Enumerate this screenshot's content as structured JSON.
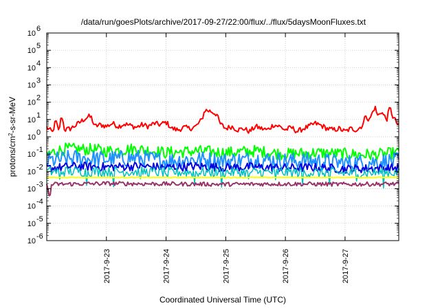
{
  "chart_data": {
    "type": "line",
    "title": "/data/run/goesPlots/archive/2017-09-27/22:00/flux/../flux/5daysMoonFluxes.txt",
    "xlabel": "Coordinated Universal Time (UTC)",
    "ylabel_parts": {
      "base": "protons/cm",
      "sup": "2",
      "rest": "-s-sr-MeV"
    },
    "y_scale": "log",
    "ylim": [
      1e-06,
      1000000.0
    ],
    "y_ticks": [
      {
        "value": 1000000.0,
        "base": "10",
        "exp": "6"
      },
      {
        "value": 100000.0,
        "base": "10",
        "exp": "5"
      },
      {
        "value": 10000.0,
        "base": "10",
        "exp": "4"
      },
      {
        "value": 1000.0,
        "base": "10",
        "exp": "3"
      },
      {
        "value": 100.0,
        "base": "10",
        "exp": "2"
      },
      {
        "value": 10.0,
        "base": "10",
        "exp": "1"
      },
      {
        "value": 1.0,
        "base": "10",
        "exp": "0"
      },
      {
        "value": 0.1,
        "base": "10",
        "exp": "-1"
      },
      {
        "value": 0.01,
        "base": "10",
        "exp": "-2"
      },
      {
        "value": 0.001,
        "base": "10",
        "exp": "-3"
      },
      {
        "value": 0.0001,
        "base": "10",
        "exp": "-4"
      },
      {
        "value": 1e-05,
        "base": "10",
        "exp": "-5"
      },
      {
        "value": 1e-06,
        "base": "10",
        "exp": "-6"
      }
    ],
    "x_range_days": [
      0,
      5.9
    ],
    "x_ticks": [
      {
        "day": 1,
        "label": "2017-9-23"
      },
      {
        "day": 2,
        "label": "2017-9-24"
      },
      {
        "day": 3,
        "label": "2017-9-25"
      },
      {
        "day": 4,
        "label": "2017-9-26"
      },
      {
        "day": 5,
        "label": "2017-9-27"
      }
    ],
    "grid": true,
    "series": [
      {
        "color": "#ff0000",
        "points": [
          [
            0.0,
            3.5
          ],
          [
            0.1,
            1.8
          ],
          [
            0.15,
            9.0
          ],
          [
            0.2,
            2.0
          ],
          [
            0.25,
            18.0
          ],
          [
            0.3,
            2.5
          ],
          [
            0.4,
            3.0
          ],
          [
            0.5,
            5.0
          ],
          [
            0.6,
            9.0
          ],
          [
            0.7,
            15.0
          ],
          [
            0.75,
            13.0
          ],
          [
            0.8,
            4.0
          ],
          [
            0.9,
            5.0
          ],
          [
            1.0,
            4.0
          ],
          [
            1.1,
            6.0
          ],
          [
            1.2,
            4.0
          ],
          [
            1.3,
            5.5
          ],
          [
            1.4,
            4.5
          ],
          [
            1.5,
            3.5
          ],
          [
            1.6,
            5.0
          ],
          [
            1.7,
            4.0
          ],
          [
            1.8,
            6.0
          ],
          [
            1.9,
            5.0
          ],
          [
            2.0,
            7.0
          ],
          [
            2.1,
            3.0
          ],
          [
            2.2,
            2.5
          ],
          [
            2.3,
            3.5
          ],
          [
            2.4,
            3.0
          ],
          [
            2.5,
            4.0
          ],
          [
            2.6,
            10.0
          ],
          [
            2.65,
            35.0
          ],
          [
            2.75,
            30.0
          ],
          [
            2.85,
            20.0
          ],
          [
            2.9,
            6.0
          ],
          [
            3.0,
            3.0
          ],
          [
            3.1,
            4.0
          ],
          [
            3.2,
            2.5
          ],
          [
            3.3,
            3.0
          ],
          [
            3.4,
            2.0
          ],
          [
            3.5,
            4.0
          ],
          [
            3.6,
            3.0
          ],
          [
            3.7,
            2.5
          ],
          [
            3.8,
            5.0
          ],
          [
            3.9,
            4.0
          ],
          [
            4.0,
            2.5
          ],
          [
            4.1,
            3.5
          ],
          [
            4.2,
            2.0
          ],
          [
            4.3,
            3.0
          ],
          [
            4.4,
            4.0
          ],
          [
            4.5,
            6.0
          ],
          [
            4.6,
            4.5
          ],
          [
            4.7,
            3.0
          ],
          [
            4.8,
            2.5
          ],
          [
            4.9,
            3.0
          ],
          [
            5.0,
            2.0
          ],
          [
            5.1,
            3.0
          ],
          [
            5.2,
            2.5
          ],
          [
            5.3,
            5.0
          ],
          [
            5.35,
            20.0
          ],
          [
            5.4,
            8.0
          ],
          [
            5.5,
            55.0
          ],
          [
            5.55,
            15.0
          ],
          [
            5.6,
            30.0
          ],
          [
            5.7,
            10.0
          ],
          [
            5.75,
            50.0
          ],
          [
            5.8,
            15.0
          ],
          [
            5.85,
            8.0
          ],
          [
            5.9,
            4.0
          ]
        ],
        "noise": 0.15,
        "width": 2
      },
      {
        "color": "#00ff00",
        "points": [
          [
            0.0,
            0.1
          ],
          [
            0.3,
            0.2
          ],
          [
            0.8,
            0.18
          ],
          [
            1.0,
            0.15
          ],
          [
            1.5,
            0.2
          ],
          [
            2.0,
            0.12
          ],
          [
            2.5,
            0.15
          ],
          [
            3.0,
            0.12
          ],
          [
            3.5,
            0.15
          ],
          [
            4.0,
            0.1
          ],
          [
            4.5,
            0.12
          ],
          [
            5.0,
            0.1
          ],
          [
            5.5,
            0.09
          ],
          [
            5.9,
            0.12
          ]
        ],
        "noise": 0.35,
        "width": 2
      },
      {
        "color": "#1e90ff",
        "points": [
          [
            0.0,
            0.04
          ],
          [
            0.5,
            0.06
          ],
          [
            1.0,
            0.05
          ],
          [
            1.5,
            0.06
          ],
          [
            2.0,
            0.04
          ],
          [
            2.5,
            0.05
          ],
          [
            3.0,
            0.04
          ],
          [
            3.5,
            0.05
          ],
          [
            4.0,
            0.04
          ],
          [
            4.5,
            0.04
          ],
          [
            5.0,
            0.03
          ],
          [
            5.5,
            0.035
          ],
          [
            5.9,
            0.04
          ]
        ],
        "noise": 0.5,
        "width": 2
      },
      {
        "color": "#0000dd",
        "points": [
          [
            0.0,
            0.015
          ],
          [
            0.5,
            0.02
          ],
          [
            1.0,
            0.018
          ],
          [
            1.5,
            0.02
          ],
          [
            2.0,
            0.017
          ],
          [
            2.5,
            0.02
          ],
          [
            3.0,
            0.017
          ],
          [
            3.5,
            0.018
          ],
          [
            4.0,
            0.016
          ],
          [
            4.5,
            0.017
          ],
          [
            5.0,
            0.014
          ],
          [
            5.5,
            0.015
          ],
          [
            5.9,
            0.016
          ]
        ],
        "noise": 0.25,
        "width": 2
      },
      {
        "color": "#00c0c0",
        "points": [
          [
            0.0,
            0.01
          ],
          [
            1.0,
            0.01
          ],
          [
            2.0,
            0.009
          ],
          [
            3.0,
            0.009
          ],
          [
            4.0,
            0.009
          ],
          [
            5.0,
            0.008
          ],
          [
            5.9,
            0.009
          ]
        ],
        "noise": 0.3,
        "dips": true,
        "width": 1.5
      },
      {
        "color": "#ffff00",
        "points": [
          [
            0.0,
            0.0045
          ],
          [
            1.0,
            0.0045
          ],
          [
            2.0,
            0.0045
          ],
          [
            3.0,
            0.0045
          ],
          [
            4.0,
            0.0045
          ],
          [
            5.0,
            0.0045
          ],
          [
            5.9,
            0.0045
          ]
        ],
        "noise": 0.02,
        "width": 2
      },
      {
        "color": "#993366",
        "points": [
          [
            0.0,
            0.0018
          ],
          [
            0.05,
            0.00025
          ],
          [
            0.08,
            0.0018
          ],
          [
            1.0,
            0.002
          ],
          [
            2.0,
            0.0019
          ],
          [
            3.0,
            0.0018
          ],
          [
            4.0,
            0.0019
          ],
          [
            5.0,
            0.0018
          ],
          [
            5.9,
            0.0019
          ]
        ],
        "noise": 0.12,
        "width": 2
      }
    ]
  }
}
